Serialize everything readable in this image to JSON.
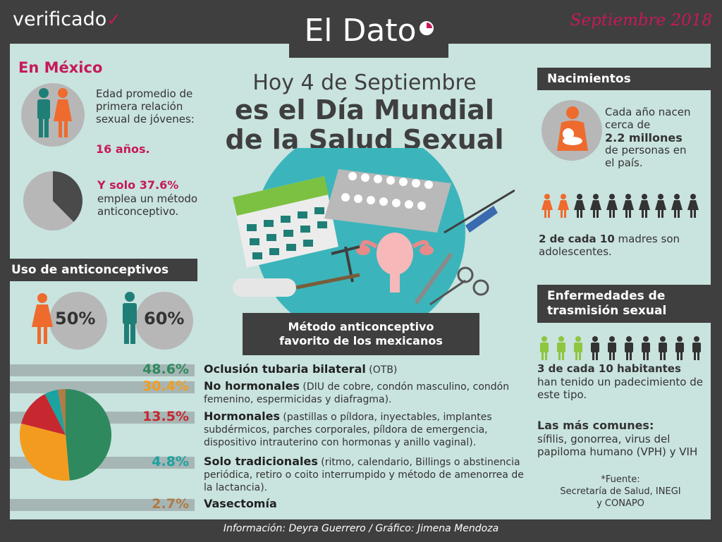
{
  "header": {
    "brand": "verificado",
    "title": "El Dato",
    "date": "Septiembre 2018"
  },
  "mexico": {
    "heading": "En México",
    "age_text": "Edad promedio de primera relación sexual de jóvenes:",
    "age_value": "16 años.",
    "contra_highlight": "Y solo 37.6%",
    "contra_text": "emplea un método anticonceptivo.",
    "contra_pct": 37.6
  },
  "headline": {
    "line1": "Hoy 4 de Septiembre",
    "line2": "es el Día Mundial",
    "line3": "de la Salud Sexual"
  },
  "uso": {
    "heading": "Uso de anticonceptivos",
    "women_pct": "50%",
    "men_pct": "60%"
  },
  "favorite": {
    "line1": "Método anticonceptivo",
    "line2": "favorito de los mexicanos"
  },
  "methods": [
    {
      "pct": "48.6%",
      "value": 48.6,
      "color": "#2e8a5e",
      "name": "Oclusión tubaria bilateral",
      "desc": " (OTB)"
    },
    {
      "pct": "30.4%",
      "value": 30.4,
      "color": "#f39b1f",
      "name": "No hormonales",
      "desc": " (DIU de cobre, condón masculino, condón femenino, espermicidas y diafragma)."
    },
    {
      "pct": "13.5%",
      "value": 13.5,
      "color": "#c72830",
      "name": "Hormonales",
      "desc": " (pastillas o píldora, inyectables, implantes subdérmicos, parches corporales, píldora de emergencia, dispositivo intrauterino con hormonas y anillo vaginal)."
    },
    {
      "pct": "4.8%",
      "value": 4.8,
      "color": "#1aa3a0",
      "name": "Solo tradicionales",
      "desc": " (ritmo, calendario, Billings o abstinencia periódica, retiro o coito interrumpido y método de amenorrea de la lactancia)."
    },
    {
      "pct": "2.7%",
      "value": 2.7,
      "color": "#b07b45",
      "name": "Vasectomía",
      "desc": ""
    }
  ],
  "nacimientos": {
    "heading": "Nacimientos",
    "text1": "Cada año nacen cerca de",
    "highlight": "2.2 millones",
    "text2": "de personas en el país.",
    "teen_bold": "2 de cada 10",
    "teen_text": " madres son adolescentes."
  },
  "ets": {
    "heading1": "Enfermedades de",
    "heading2": "trasmisión sexual",
    "bold": "3 de cada 10 habitantes",
    "text": "han tenido un padecimiento de este tipo.",
    "common_heading": "Las más comunes:",
    "common_text": "sífilis, gonorrea, virus del papiloma humano (VPH) y VIH"
  },
  "source": {
    "line1": "*Fuente:",
    "line2": "Secretaría de Salud, INEGI",
    "line3": "y CONAPO"
  },
  "footer": {
    "credits": "Información: Deyra Guerrero / Gráfico: Jimena Mendoza"
  },
  "colors": {
    "magenta": "#c6195a",
    "teal": "#1f7f77",
    "orange": "#ee6b2d",
    "dark": "#3f3f3f",
    "bg": "#c9e3df",
    "lime": "#8dc63f"
  },
  "chart_data": {
    "type": "pie",
    "title": "Método anticonceptivo favorito de los mexicanos",
    "categories": [
      "Oclusión tubaria bilateral",
      "No hormonales",
      "Hormonales",
      "Solo tradicionales",
      "Vasectomía"
    ],
    "values": [
      48.6,
      30.4,
      13.5,
      4.8,
      2.7
    ]
  }
}
